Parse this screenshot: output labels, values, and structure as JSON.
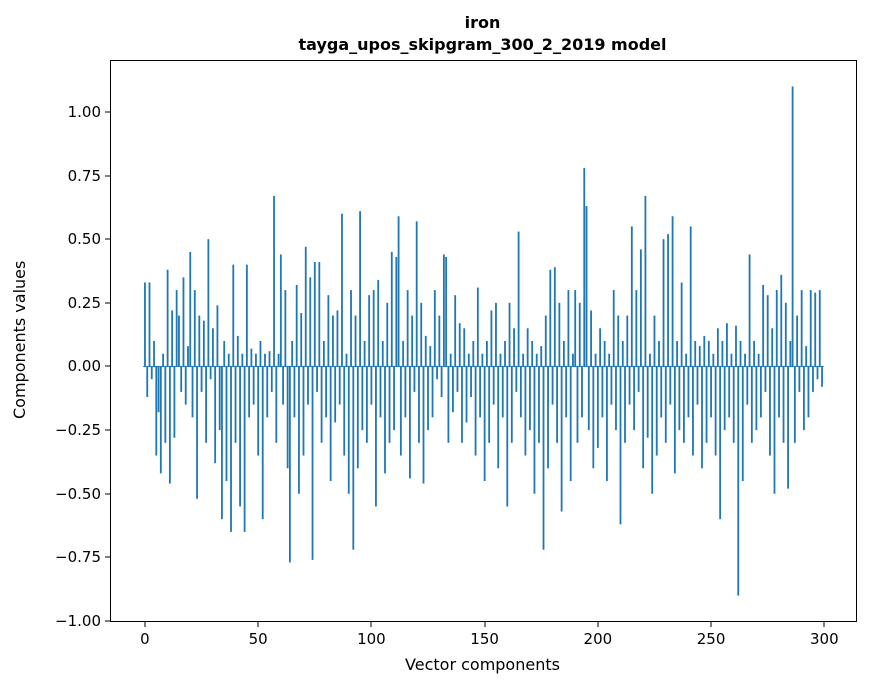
{
  "figure": {
    "title_line1": "iron",
    "title_line2": "tayga_upos_skipgram_300_2_2019 model"
  },
  "chart_data": {
    "type": "bar",
    "title": "iron\ntayga_upos_skipgram_300_2_2019 model",
    "xlabel": "Vector components",
    "ylabel": "Components values",
    "bar_color": "#1f77b4",
    "grid": false,
    "legend": null,
    "n_components": 300,
    "xlim": [
      -15.0,
      314.0
    ],
    "ylim": [
      -1.0,
      1.2
    ],
    "xticks": [
      {
        "label": "0",
        "value": 0
      },
      {
        "label": "50",
        "value": 50
      },
      {
        "label": "100",
        "value": 100
      },
      {
        "label": "150",
        "value": 150
      },
      {
        "label": "200",
        "value": 200
      },
      {
        "label": "250",
        "value": 250
      },
      {
        "label": "300",
        "value": 300
      }
    ],
    "yticks": [
      {
        "label": "−1.00",
        "value": -1.0
      },
      {
        "label": "−0.75",
        "value": -0.75
      },
      {
        "label": "−0.50",
        "value": -0.5
      },
      {
        "label": "−0.25",
        "value": -0.25
      },
      {
        "label": "0.00",
        "value": 0.0
      },
      {
        "label": "0.25",
        "value": 0.25
      },
      {
        "label": "0.50",
        "value": 0.5
      },
      {
        "label": "0.75",
        "value": 0.75
      },
      {
        "label": "1.00",
        "value": 1.0
      }
    ],
    "values": [
      0.33,
      -0.12,
      0.33,
      -0.05,
      0.1,
      -0.35,
      -0.18,
      -0.42,
      0.05,
      -0.3,
      0.38,
      -0.46,
      0.22,
      -0.28,
      0.3,
      0.2,
      -0.1,
      0.35,
      -0.15,
      0.08,
      0.45,
      -0.2,
      0.3,
      -0.52,
      0.2,
      -0.1,
      0.18,
      -0.3,
      0.5,
      -0.05,
      0.15,
      -0.38,
      0.24,
      -0.25,
      -0.6,
      0.1,
      -0.45,
      0.05,
      -0.65,
      0.4,
      -0.3,
      0.12,
      -0.55,
      0.05,
      -0.65,
      0.4,
      -0.2,
      0.07,
      -0.15,
      0.05,
      -0.35,
      0.1,
      -0.6,
      0.05,
      -0.2,
      0.06,
      -0.1,
      0.67,
      -0.3,
      0.05,
      0.44,
      -0.15,
      0.3,
      -0.4,
      -0.77,
      0.1,
      -0.2,
      0.32,
      -0.5,
      0.21,
      -0.35,
      0.47,
      -0.15,
      0.35,
      -0.76,
      0.41,
      -0.1,
      0.41,
      -0.3,
      0.1,
      -0.2,
      0.28,
      -0.45,
      0.2,
      -0.22,
      0.22,
      -0.15,
      0.6,
      -0.35,
      0.05,
      -0.5,
      0.3,
      -0.72,
      0.2,
      -0.4,
      0.61,
      -0.25,
      0.1,
      -0.3,
      0.28,
      -0.15,
      0.3,
      -0.55,
      0.34,
      -0.2,
      0.1,
      -0.42,
      0.25,
      -0.3,
      0.45,
      -0.25,
      0.43,
      0.59,
      -0.35,
      0.1,
      -0.2,
      0.3,
      -0.44,
      0.2,
      -0.1,
      0.57,
      -0.3,
      0.25,
      -0.46,
      0.12,
      -0.25,
      0.08,
      -0.2,
      0.3,
      -0.05,
      0.2,
      -0.12,
      0.44,
      0.43,
      -0.3,
      0.05,
      -0.18,
      0.28,
      -0.1,
      0.17,
      -0.3,
      0.15,
      -0.22,
      0.05,
      -0.12,
      0.1,
      -0.35,
      0.31,
      -0.2,
      0.05,
      -0.45,
      0.1,
      -0.3,
      0.22,
      -0.15,
      0.25,
      -0.4,
      0.05,
      -0.2,
      0.1,
      -0.55,
      0.25,
      -0.3,
      0.15,
      -0.1,
      0.53,
      -0.2,
      0.05,
      -0.35,
      0.15,
      -0.25,
      0.1,
      -0.5,
      0.05,
      -0.3,
      0.08,
      -0.72,
      0.2,
      -0.4,
      0.38,
      -0.15,
      0.39,
      -0.3,
      0.25,
      -0.57,
      0.1,
      -0.2,
      0.3,
      -0.45,
      0.05,
      0.3,
      -0.3,
      0.25,
      -0.2,
      0.78,
      0.63,
      -0.25,
      0.22,
      -0.4,
      0.05,
      -0.32,
      0.15,
      -0.2,
      0.1,
      -0.45,
      0.05,
      -0.15,
      0.3,
      -0.25,
      0.2,
      -0.62,
      0.1,
      -0.3,
      0.2,
      -0.15,
      0.55,
      -0.25,
      0.3,
      -0.1,
      0.46,
      -0.4,
      0.67,
      -0.28,
      0.05,
      -0.5,
      0.2,
      -0.35,
      0.1,
      -0.2,
      0.5,
      -0.3,
      0.52,
      -0.15,
      0.59,
      -0.42,
      0.1,
      -0.25,
      0.33,
      -0.3,
      0.05,
      -0.2,
      0.55,
      -0.35,
      0.1,
      -0.15,
      0.08,
      -0.4,
      0.12,
      -0.3,
      0.1,
      -0.2,
      0.05,
      -0.35,
      0.15,
      -0.6,
      0.1,
      -0.25,
      0.17,
      -0.2,
      0.05,
      -0.3,
      0.16,
      -0.9,
      0.1,
      -0.45,
      0.05,
      -0.15,
      0.44,
      -0.3,
      0.1,
      -0.25,
      0.05,
      -0.2,
      0.32,
      -0.1,
      0.28,
      -0.35,
      0.15,
      -0.5,
      0.3,
      -0.2,
      0.36,
      -0.3,
      0.25,
      -0.48,
      0.1,
      1.1,
      -0.3,
      0.2,
      -0.1,
      0.3,
      -0.25,
      0.08,
      -0.2,
      0.3,
      -0.1,
      0.29,
      -0.05,
      0.3,
      -0.08
    ]
  }
}
